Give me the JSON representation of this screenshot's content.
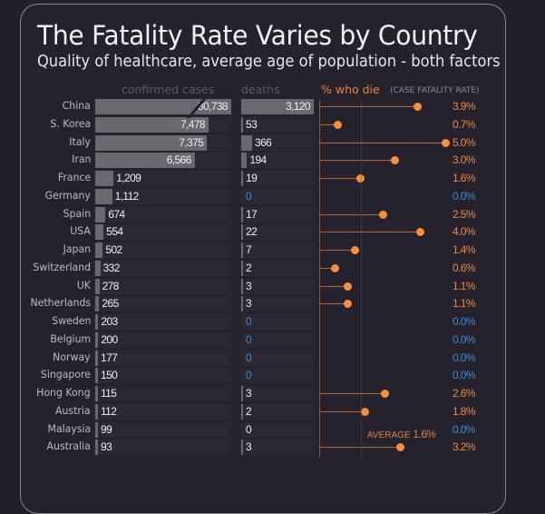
{
  "chart_data": {
    "type": "bar",
    "title": "The Fatality Rate Varies by Country",
    "subtitle": "Quality of healthcare, average age of population - both factors",
    "columns": {
      "cases": "confirmed cases",
      "deaths": "deaths",
      "fatality": "% who die",
      "fatality_note": "(CASE FATALITY RATE)"
    },
    "categories": [
      "China",
      "S. Korea",
      "Italy",
      "Iran",
      "France",
      "Germany",
      "Spain",
      "USA",
      "Japan",
      "Switzerland",
      "UK",
      "Netherlands",
      "Sweden",
      "Belgium",
      "Norway",
      "Singapore",
      "Hong Kong",
      "Austria",
      "Malaysia",
      "Australia"
    ],
    "series": [
      {
        "name": "confirmed cases",
        "values": [
          80738,
          7478,
          7375,
          6566,
          1209,
          1112,
          674,
          554,
          502,
          332,
          278,
          265,
          203,
          200,
          177,
          150,
          115,
          112,
          99,
          93
        ],
        "labels": [
          "80,738",
          "7,478",
          "7,375",
          "6,566",
          "1,209",
          "1,112",
          "674",
          "554",
          "502",
          "332",
          "278",
          "265",
          "203",
          "200",
          "177",
          "150",
          "115",
          "112",
          "99",
          "93"
        ]
      },
      {
        "name": "deaths",
        "values": [
          3120,
          53,
          366,
          194,
          19,
          0,
          17,
          22,
          7,
          2,
          3,
          3,
          0,
          0,
          0,
          0,
          3,
          2,
          0,
          3
        ],
        "labels": [
          "3,120",
          "53",
          "366",
          "194",
          "19",
          "0",
          "17",
          "22",
          "7",
          "2",
          "3",
          "3",
          "0",
          "0",
          "0",
          "0",
          "3",
          "2",
          "0",
          "3"
        ]
      },
      {
        "name": "% who die",
        "values": [
          3.9,
          0.7,
          5.0,
          3.0,
          1.6,
          0.0,
          2.5,
          4.0,
          1.4,
          0.6,
          1.1,
          1.1,
          0.0,
          0.0,
          0.0,
          0.0,
          2.6,
          1.8,
          0.0,
          3.2
        ],
        "labels": [
          "3.9%",
          "0.7%",
          "5.0%",
          "3.0%",
          "1.6%",
          "0.0%",
          "2.5%",
          "4.0%",
          "1.4%",
          "0.6%",
          "1.1%",
          "1.1%",
          "0.0%",
          "0.0%",
          "0.0%",
          "0.0%",
          "2.6%",
          "1.8%",
          "0.0%",
          "3.2%"
        ]
      }
    ],
    "cases_axis_break": "China bar truncated",
    "average": {
      "label": "AVERAGE",
      "value": 1.6,
      "value_label": "1.6%"
    },
    "colors": {
      "bar": "#6a686f",
      "fatality": "#f4903f",
      "zero": "#3d8ed4",
      "background": "#25222d"
    }
  }
}
